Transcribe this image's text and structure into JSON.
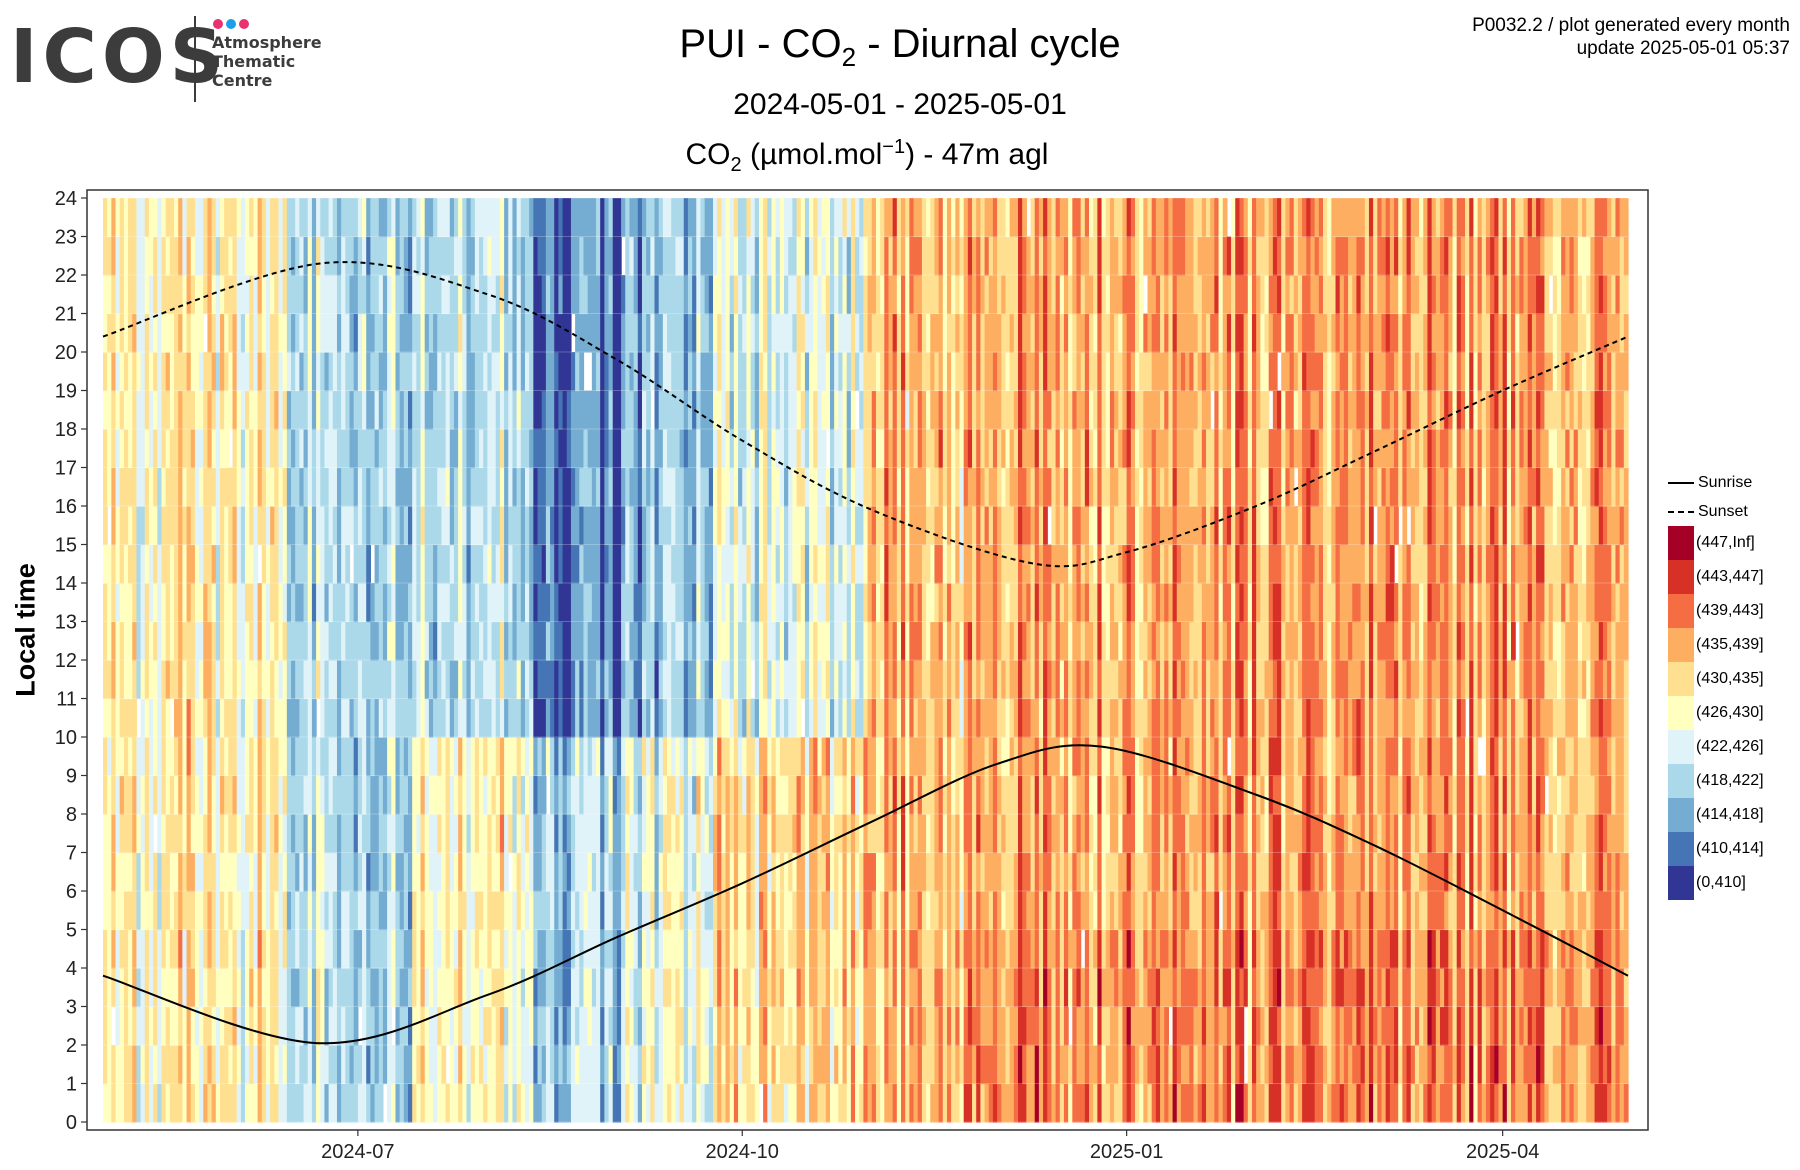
{
  "logo": {
    "word": "ICOS",
    "lines": [
      "Atmosphere",
      "Thematic",
      "Centre"
    ],
    "dot_colors": [
      "#e8336f",
      "#1f9ee8",
      "#e8336f"
    ]
  },
  "header": {
    "title_parts": [
      "PUI - CO",
      "2",
      " - Diurnal cycle"
    ],
    "subtitle": "2024-05-01 - 2025-05-01",
    "variable_parts": [
      "CO",
      "2",
      " (µmol.mol",
      "−1",
      ") - 47m agl"
    ],
    "meta_line1": "P0032.2 / plot generated every month",
    "meta_line2": "update  2025-05-01 05:37"
  },
  "chart_data": {
    "type": "heatmap",
    "title": "PUI - CO2 - Diurnal cycle",
    "ylabel": "Local time",
    "x_range": [
      "2024-05-01",
      "2025-05-01"
    ],
    "y_range": [
      0,
      24
    ],
    "x_tick_labels": [
      "2024-07",
      "2024-10",
      "2025-01",
      "2025-04"
    ],
    "x_tick_dates": [
      "2024-07-01",
      "2024-10-01",
      "2025-01-01",
      "2025-04-01"
    ],
    "y_ticks": [
      0,
      1,
      2,
      3,
      4,
      5,
      6,
      7,
      8,
      9,
      10,
      11,
      12,
      13,
      14,
      15,
      16,
      17,
      18,
      19,
      20,
      21,
      22,
      23,
      24
    ],
    "grid": true,
    "legend_position": "right",
    "sunrise": {
      "label": "Sunrise",
      "x": [
        "2024-05-01",
        "2024-06-21",
        "2024-08-01",
        "2024-09-01",
        "2024-10-01",
        "2024-11-01",
        "2024-12-01",
        "2024-12-26",
        "2025-02-01",
        "2025-03-01",
        "2025-04-01",
        "2025-05-01"
      ],
      "y": [
        3.8,
        2.05,
        3.3,
        4.8,
        6.2,
        7.8,
        9.3,
        9.75,
        8.5,
        7.2,
        5.5,
        3.8
      ]
    },
    "sunset": {
      "label": "Sunset",
      "x": [
        "2024-05-01",
        "2024-06-22",
        "2024-08-01",
        "2024-09-01",
        "2024-10-01",
        "2024-11-01",
        "2024-12-10",
        "2025-01-01",
        "2025-02-01",
        "2025-03-01",
        "2025-04-01",
        "2025-05-01"
      ],
      "y": [
        20.4,
        22.3,
        21.5,
        19.8,
        17.7,
        15.9,
        14.5,
        14.8,
        16.0,
        17.4,
        19.0,
        20.4
      ]
    },
    "classes": [
      {
        "label": "(447,Inf]",
        "color": "#a50026"
      },
      {
        "label": "(443,447]",
        "color": "#d73027"
      },
      {
        "label": "(439,443]",
        "color": "#f46d43"
      },
      {
        "label": "(435,439]",
        "color": "#fdae61"
      },
      {
        "label": "(430,435]",
        "color": "#fee090"
      },
      {
        "label": "(426,430]",
        "color": "#ffffbf"
      },
      {
        "label": "(422,426]",
        "color": "#e0f3f8"
      },
      {
        "label": "(418,422]",
        "color": "#abd9e9"
      },
      {
        "label": "(414,418]",
        "color": "#74add1"
      },
      {
        "label": "(410,414]",
        "color": "#4575b4"
      },
      {
        "label": "(0,410]",
        "color": "#313695"
      }
    ]
  }
}
